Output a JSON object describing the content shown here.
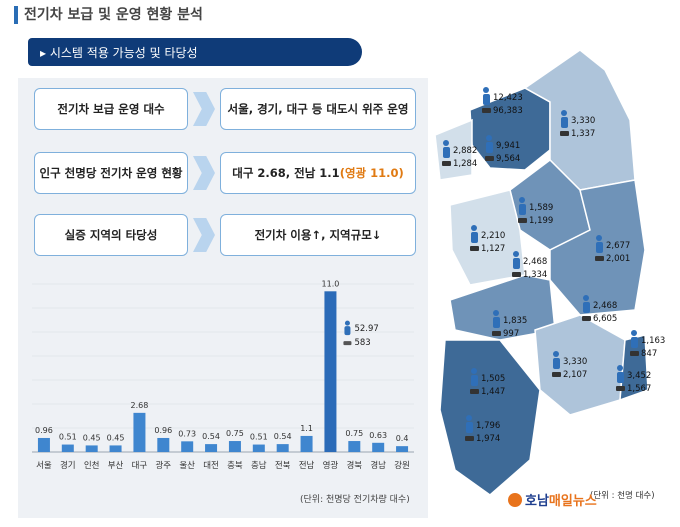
{
  "header": {
    "title": "전기차 보급 및 운영 현황 분석",
    "subtitle": "▸ 시스템 적용 가능성 및 타당성"
  },
  "rows": [
    {
      "left": "전기차 보급 운영 대수",
      "right": "서울, 경기, 대구 등 대도시 위주 운영"
    },
    {
      "left": "인구 천명당 전기차 운영 현황",
      "right_main": "대구 2.68, 전남 1.1",
      "right_highlight": "(영광 11.0)"
    },
    {
      "left": "실증 지역의 타당성",
      "right": "전기차 이용↑, 지역규모↓"
    }
  ],
  "chart_data": {
    "type": "bar",
    "categories": [
      "서울",
      "경기",
      "인천",
      "부산",
      "대구",
      "광주",
      "울산",
      "대전",
      "충북",
      "충남",
      "전북",
      "전남",
      "영광",
      "경북",
      "경남",
      "강원"
    ],
    "values": [
      0.96,
      0.51,
      0.45,
      0.45,
      2.68,
      0.96,
      0.73,
      0.54,
      0.75,
      0.51,
      0.54,
      1.1,
      11.0,
      0.75,
      0.63,
      0.4
    ],
    "value_labels": [
      "0.96",
      "0.51",
      "0.45",
      "0.45",
      "2.68",
      "0.96",
      "0.73",
      "0.54",
      "0.75",
      "0.51",
      "0.54",
      "1.1",
      "11.0",
      "0.75",
      "0.63",
      "0.4"
    ],
    "ylim": [
      0,
      11.5
    ],
    "unit_label": "(단위: 천명당 전기차량 대수)",
    "annotation": {
      "category": "영광",
      "values": [
        "52.97",
        "583"
      ]
    },
    "colors": {
      "bar": "#3f86cf",
      "highlight": "#2b6bb8",
      "grid": "#d8dde3"
    }
  },
  "map": {
    "regions": [
      {
        "name": "seoul-gyeonggi",
        "values": [
          "12,423",
          "96,383"
        ]
      },
      {
        "name": "gangwon",
        "values": [
          "3,330",
          "1,337"
        ]
      },
      {
        "name": "incheon",
        "values": [
          "2,882",
          "1,284"
        ]
      },
      {
        "name": "gyeonggi-south",
        "values": [
          "9,941",
          "9,564"
        ]
      },
      {
        "name": "chungbuk",
        "values": [
          "1,589",
          "1,199"
        ]
      },
      {
        "name": "chungnam",
        "values": [
          "2,210",
          "1,127"
        ]
      },
      {
        "name": "gyeongbuk",
        "values": [
          "2,677",
          "2,001"
        ]
      },
      {
        "name": "daejeon",
        "values": [
          "2,468",
          "1,334"
        ]
      },
      {
        "name": "daegu",
        "values": [
          "2,468",
          "6,605"
        ]
      },
      {
        "name": "jeonbuk",
        "values": [
          "1,835",
          "997"
        ]
      },
      {
        "name": "ulsan",
        "values": [
          "1,163",
          "847"
        ]
      },
      {
        "name": "gyeongnam",
        "values": [
          "3,330",
          "2,107"
        ]
      },
      {
        "name": "busan",
        "values": [
          "3,452",
          "1,567"
        ]
      },
      {
        "name": "gwangju",
        "values": [
          "1,505",
          "1,447"
        ]
      },
      {
        "name": "jeonnam",
        "values": [
          "1,796",
          "1,974"
        ]
      }
    ],
    "unit_label": "(단위 : 천명 대수)",
    "colors": {
      "dark": "#3e6a97",
      "mid": "#6f93b8",
      "light": "#aec4da",
      "pale": "#d2dfea",
      "person": "#2f6fb8"
    }
  },
  "logo": {
    "part1": "호남",
    "part2": "매일뉴스",
    "color1": "#1f3f8f",
    "color2": "#e8731c"
  }
}
